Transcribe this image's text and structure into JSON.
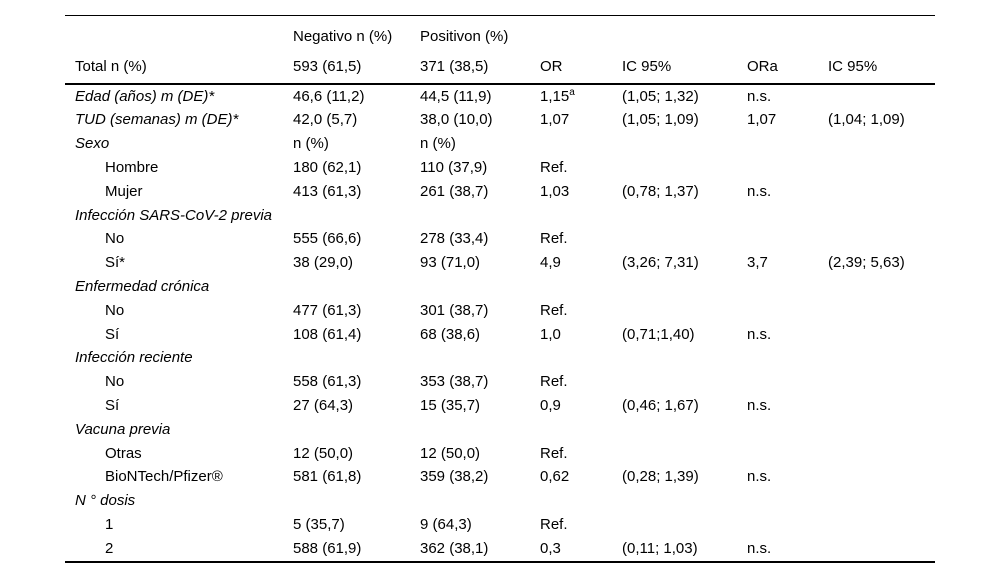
{
  "page": {
    "background_color": "#ffffff",
    "text_color": "#000000"
  },
  "table": {
    "header_row1": {
      "negativo": "Negativo n (%)",
      "positivo": "Positivon (%)"
    },
    "header_row2": {
      "total": "Total n (%)",
      "negativo_total": "593 (61,5)",
      "positivo_total": "371 (38,5)",
      "or": "OR",
      "ic95": "IC 95%",
      "ora": "ORa",
      "ic95_adjusted": "IC 95%"
    },
    "rows": [
      {
        "label": "Edad (años) m (DE)*",
        "style": "category",
        "cells": [
          "46,6 (11,2)",
          "44,5 (11,9)",
          "1,15",
          "(1,05; 1,32)",
          "n.s.",
          ""
        ],
        "or_sup": "a"
      },
      {
        "label": "TUD (semanas) m (DE)*",
        "style": "category",
        "cells": [
          "42,0 (5,7)",
          "38,0 (10,0)",
          "1,07",
          "(1,05; 1,09)",
          "1,07",
          "(1,04; 1,09)"
        ]
      },
      {
        "label": "Sexo",
        "style": "category",
        "cells": [
          "n (%)",
          "n (%)",
          "",
          "",
          "",
          ""
        ]
      },
      {
        "label": "Hombre",
        "style": "sub",
        "cells": [
          "180 (62,1)",
          "110 (37,9)",
          "Ref.",
          "",
          "",
          ""
        ]
      },
      {
        "label": "Mujer",
        "style": "sub",
        "cells": [
          "413 (61,3)",
          "261 (38,7)",
          "1,03",
          "(0,78; 1,37)",
          "n.s.",
          ""
        ]
      },
      {
        "label": "Infección SARS-CoV-2 previa",
        "style": "category",
        "cells": [
          "",
          "",
          "",
          "",
          "",
          ""
        ]
      },
      {
        "label": "No",
        "style": "sub",
        "cells": [
          "555 (66,6)",
          "278 (33,4)",
          "Ref.",
          "",
          "",
          ""
        ]
      },
      {
        "label": "Sí*",
        "style": "sub",
        "cells": [
          "38 (29,0)",
          "93 (71,0)",
          "4,9",
          "(3,26; 7,31)",
          "3,7",
          "(2,39; 5,63)"
        ]
      },
      {
        "label": "Enfermedad crónica",
        "style": "category",
        "cells": [
          "",
          "",
          "",
          "",
          "",
          ""
        ]
      },
      {
        "label": "No",
        "style": "sub",
        "cells": [
          "477 (61,3)",
          "301 (38,7)",
          "Ref.",
          "",
          "",
          ""
        ]
      },
      {
        "label": "Sí",
        "style": "sub",
        "cells": [
          "108 (61,4)",
          "68 (38,6)",
          "1,0",
          "(0,71;1,40)",
          "n.s.",
          ""
        ]
      },
      {
        "label": "Infección reciente",
        "style": "category",
        "cells": [
          "",
          "",
          "",
          "",
          "",
          ""
        ]
      },
      {
        "label": "No",
        "style": "sub",
        "cells": [
          "558 (61,3)",
          "353 (38,7)",
          "Ref.",
          "",
          "",
          ""
        ]
      },
      {
        "label": "Sí",
        "style": "sub",
        "cells": [
          "27 (64,3)",
          "15 (35,7)",
          "0,9",
          "(0,46; 1,67)",
          "n.s.",
          ""
        ]
      },
      {
        "label": "Vacuna previa",
        "style": "category",
        "cells": [
          "",
          "",
          "",
          "",
          "",
          ""
        ]
      },
      {
        "label": "Otras",
        "style": "sub",
        "cells": [
          "12 (50,0)",
          "12 (50,0)",
          "Ref.",
          "",
          "",
          ""
        ]
      },
      {
        "label": "BioNTech/Pfizer®",
        "style": "sub",
        "cells": [
          "581 (61,8)",
          "359 (38,2)",
          "0,62",
          "(0,28; 1,39)",
          "n.s.",
          ""
        ]
      },
      {
        "label": "N ° dosis",
        "style": "category",
        "cells": [
          "",
          "",
          "",
          "",
          "",
          ""
        ]
      },
      {
        "label": "1",
        "style": "sub",
        "cells": [
          "5 (35,7)",
          "9 (64,3)",
          "Ref.",
          "",
          "",
          ""
        ]
      },
      {
        "label": "2",
        "style": "sub",
        "cells": [
          "588 (61,9)",
          "362 (38,1)",
          "0,3",
          "(0,11; 1,03)",
          "n.s.",
          ""
        ]
      }
    ]
  }
}
